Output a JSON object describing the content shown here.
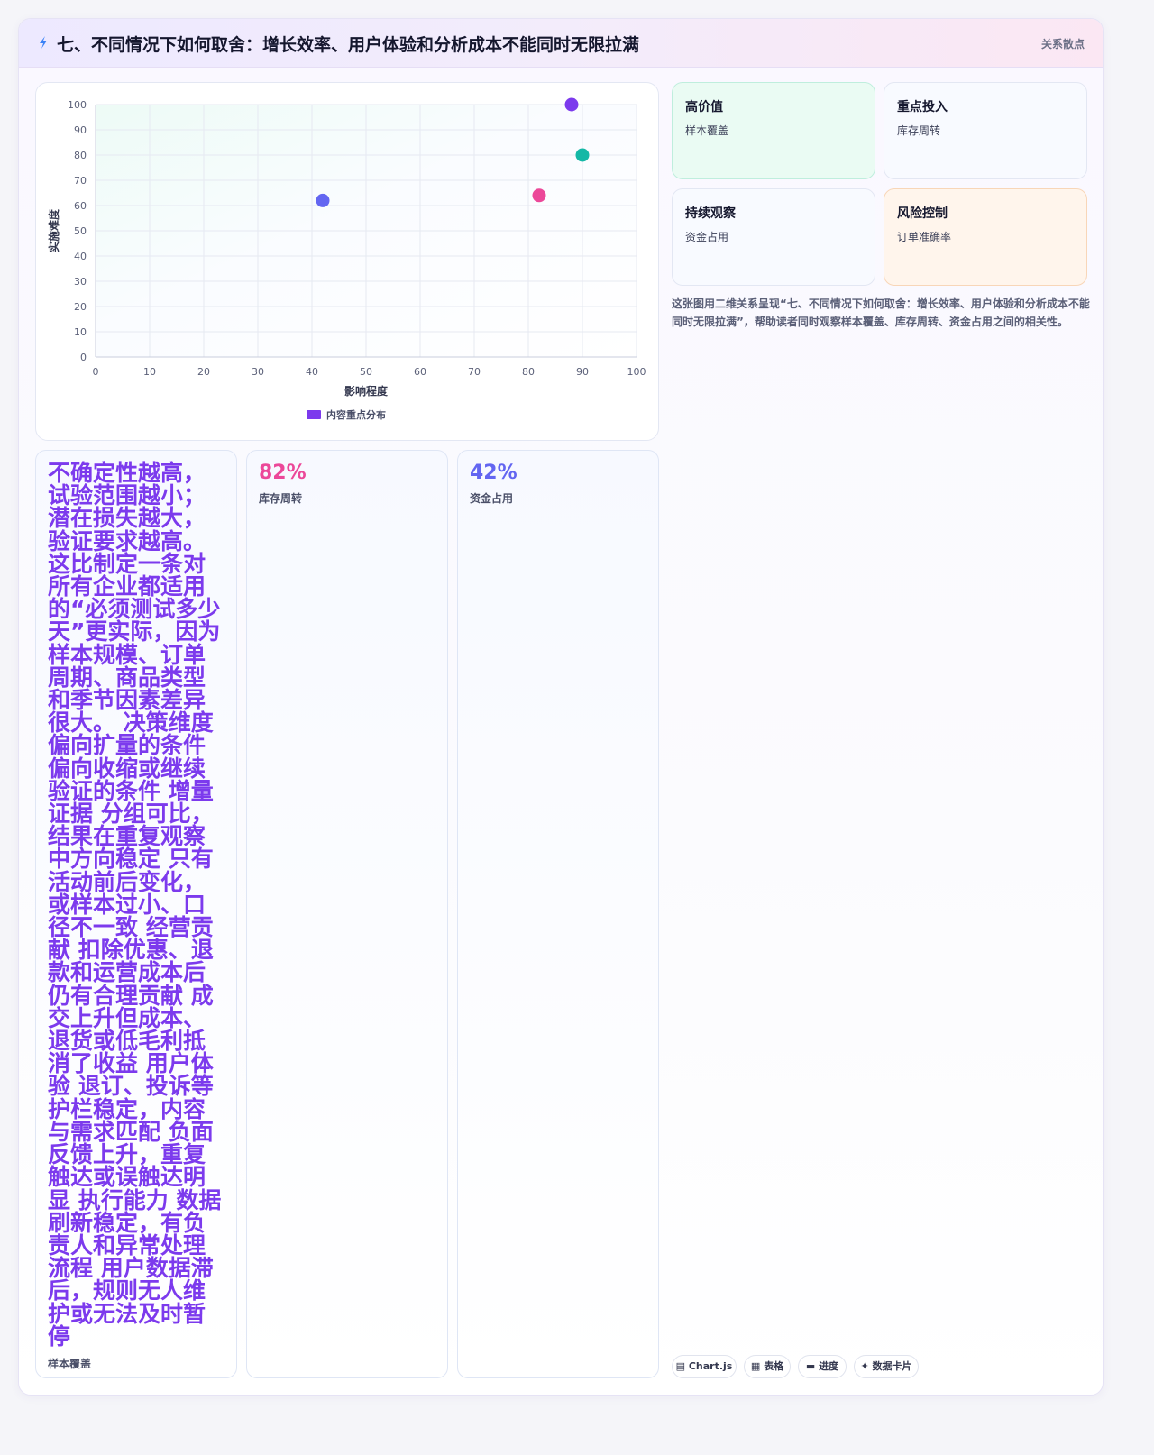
{
  "header": {
    "title": "七、不同情况下如何取舍：增长效率、用户体验和分析成本不能同时无限拉满",
    "tag": "关系散点"
  },
  "chart_data": {
    "type": "scatter",
    "xlabel": "影响程度",
    "ylabel": "实施难度",
    "xlim": [
      0,
      100
    ],
    "ylim": [
      0,
      100
    ],
    "x_ticks": [
      0,
      10,
      20,
      30,
      40,
      50,
      60,
      70,
      80,
      90,
      100
    ],
    "y_ticks": [
      0,
      10,
      20,
      30,
      40,
      50,
      60,
      70,
      80,
      90,
      100
    ],
    "grid": true,
    "legend_position": "bottom",
    "series": [
      {
        "name": "内容重点分布",
        "color": "#7c3aed",
        "points": [
          {
            "x": 42,
            "y": 62,
            "color": "#6366f1"
          },
          {
            "x": 82,
            "y": 64,
            "color": "#ec4899"
          },
          {
            "x": 88,
            "y": 100,
            "color": "#7c3aed"
          },
          {
            "x": 90,
            "y": 80,
            "color": "#14b8a6"
          }
        ]
      }
    ]
  },
  "quadrants": [
    {
      "title": "高价值",
      "sub": "样本覆盖"
    },
    {
      "title": "重点投入",
      "sub": "库存周转"
    },
    {
      "title": "持续观察",
      "sub": "资金占用"
    },
    {
      "title": "风险控制",
      "sub": "订单准确率"
    }
  ],
  "description": "这张图用二维关系呈现“七、不同情况下如何取舍：增长效率、用户体验和分析成本不能同时无限拉满”，帮助读者同时观察样本覆盖、库存周转、资金占用之间的相关性。",
  "stats": [
    {
      "text": "不确定性越高，试验范围越小；潜在损失越大，验证要求越高。这比制定一条对所有企业都适用的“必须测试多少天”更实际，因为样本规模、订单周期、商品类型和季节因素差异很大。 决策维度 偏向扩量的条件 偏向收缩或继续验证的条件 增量证据 分组可比，结果在重复观察中方向稳定 只有活动前后变化，或样本过小、口径不一致 经营贡献 扣除优惠、退款和运营成本后仍有合理贡献 成交上升但成本、退货或低毛利抵消了收益 用户体验 退订、投诉等护栏稳定，内容与需求匹配 负面反馈上升，重复触达或误触达明显 执行能力 数据刷新稳定，有负责人和异常处理流程 用户数据滞后，规则无人维护或无法及时暂停",
      "label": "样本覆盖"
    },
    {
      "value": "82%",
      "label": "库存周转",
      "color": "#ec4899"
    },
    {
      "value": "42%",
      "label": "资金占用",
      "color": "#6366f1"
    }
  ],
  "footer_tags": [
    "▤ Chart.js",
    "▦ 表格",
    "▬ 进度",
    "✦ 数据卡片"
  ]
}
